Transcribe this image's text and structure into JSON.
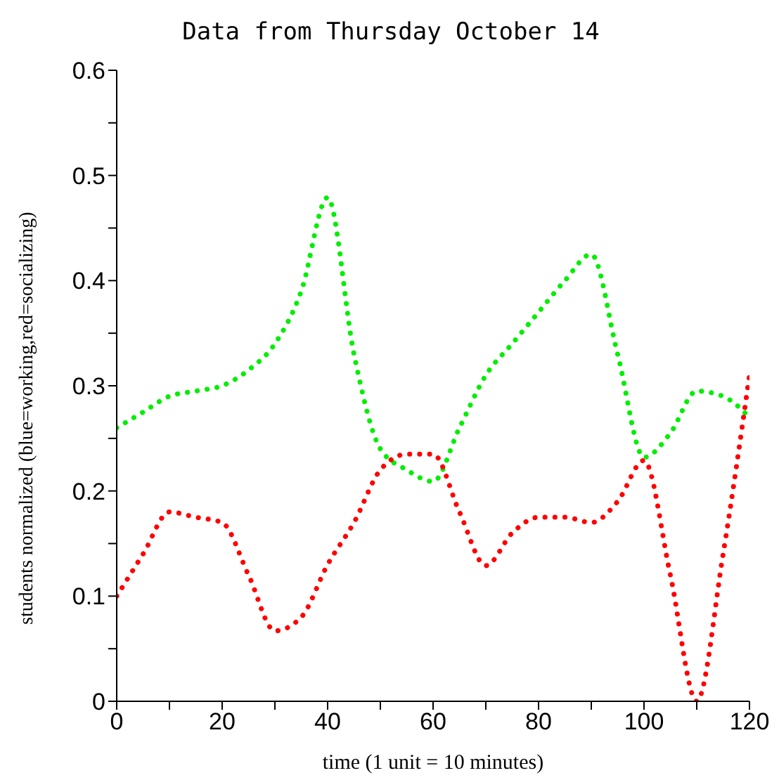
{
  "chart_data": {
    "type": "line",
    "title": "Data from Thursday October 14",
    "xlabel": "time (1 unit = 10 minutes)",
    "ylabel": "students normalized (blue=working,red=socializing)",
    "x": [
      0,
      5,
      10,
      15,
      20,
      25,
      30,
      35,
      40,
      45,
      50,
      55,
      60,
      65,
      70,
      75,
      80,
      85,
      90,
      95,
      100,
      105,
      110,
      115,
      120
    ],
    "series": [
      {
        "color": "#00ee00",
        "values": [
          0.26,
          0.275,
          0.29,
          0.295,
          0.3,
          0.315,
          0.34,
          0.39,
          0.479,
          0.33,
          0.24,
          0.22,
          0.209,
          0.26,
          0.31,
          0.34,
          0.37,
          0.4,
          0.425,
          0.33,
          0.232,
          0.255,
          0.295,
          0.29,
          0.27
        ]
      },
      {
        "color": "#ff0000",
        "values": [
          0.1,
          0.14,
          0.18,
          0.175,
          0.17,
          0.12,
          0.067,
          0.08,
          0.13,
          0.17,
          0.22,
          0.235,
          0.235,
          0.18,
          0.129,
          0.16,
          0.175,
          0.175,
          0.17,
          0.19,
          0.229,
          0.12,
          0.0,
          0.14,
          0.31
        ]
      }
    ],
    "xlim": [
      0,
      120
    ],
    "xticks": [
      0,
      {
        "value": 10,
        "label": null
      },
      20,
      {
        "value": 30,
        "label": null
      },
      40,
      {
        "value": 50,
        "label": null
      },
      60,
      {
        "value": 70,
        "label": null
      },
      80,
      {
        "value": 90,
        "label": null
      },
      100,
      {
        "value": 110,
        "label": null
      },
      120
    ],
    "ylim": [
      0,
      0.6
    ],
    "yticks": [
      0,
      {
        "value": 0.05,
        "label": null
      },
      0.1,
      {
        "value": 0.15,
        "label": null
      },
      0.2,
      {
        "value": 0.25,
        "label": null
      },
      0.3,
      {
        "value": 0.35,
        "label": null
      },
      0.4,
      {
        "value": 0.45,
        "label": null
      },
      0.5,
      {
        "value": 0.55,
        "label": null
      },
      0.6
    ],
    "grid": false,
    "legend": false,
    "marker": "none",
    "line_style": "dotted"
  }
}
